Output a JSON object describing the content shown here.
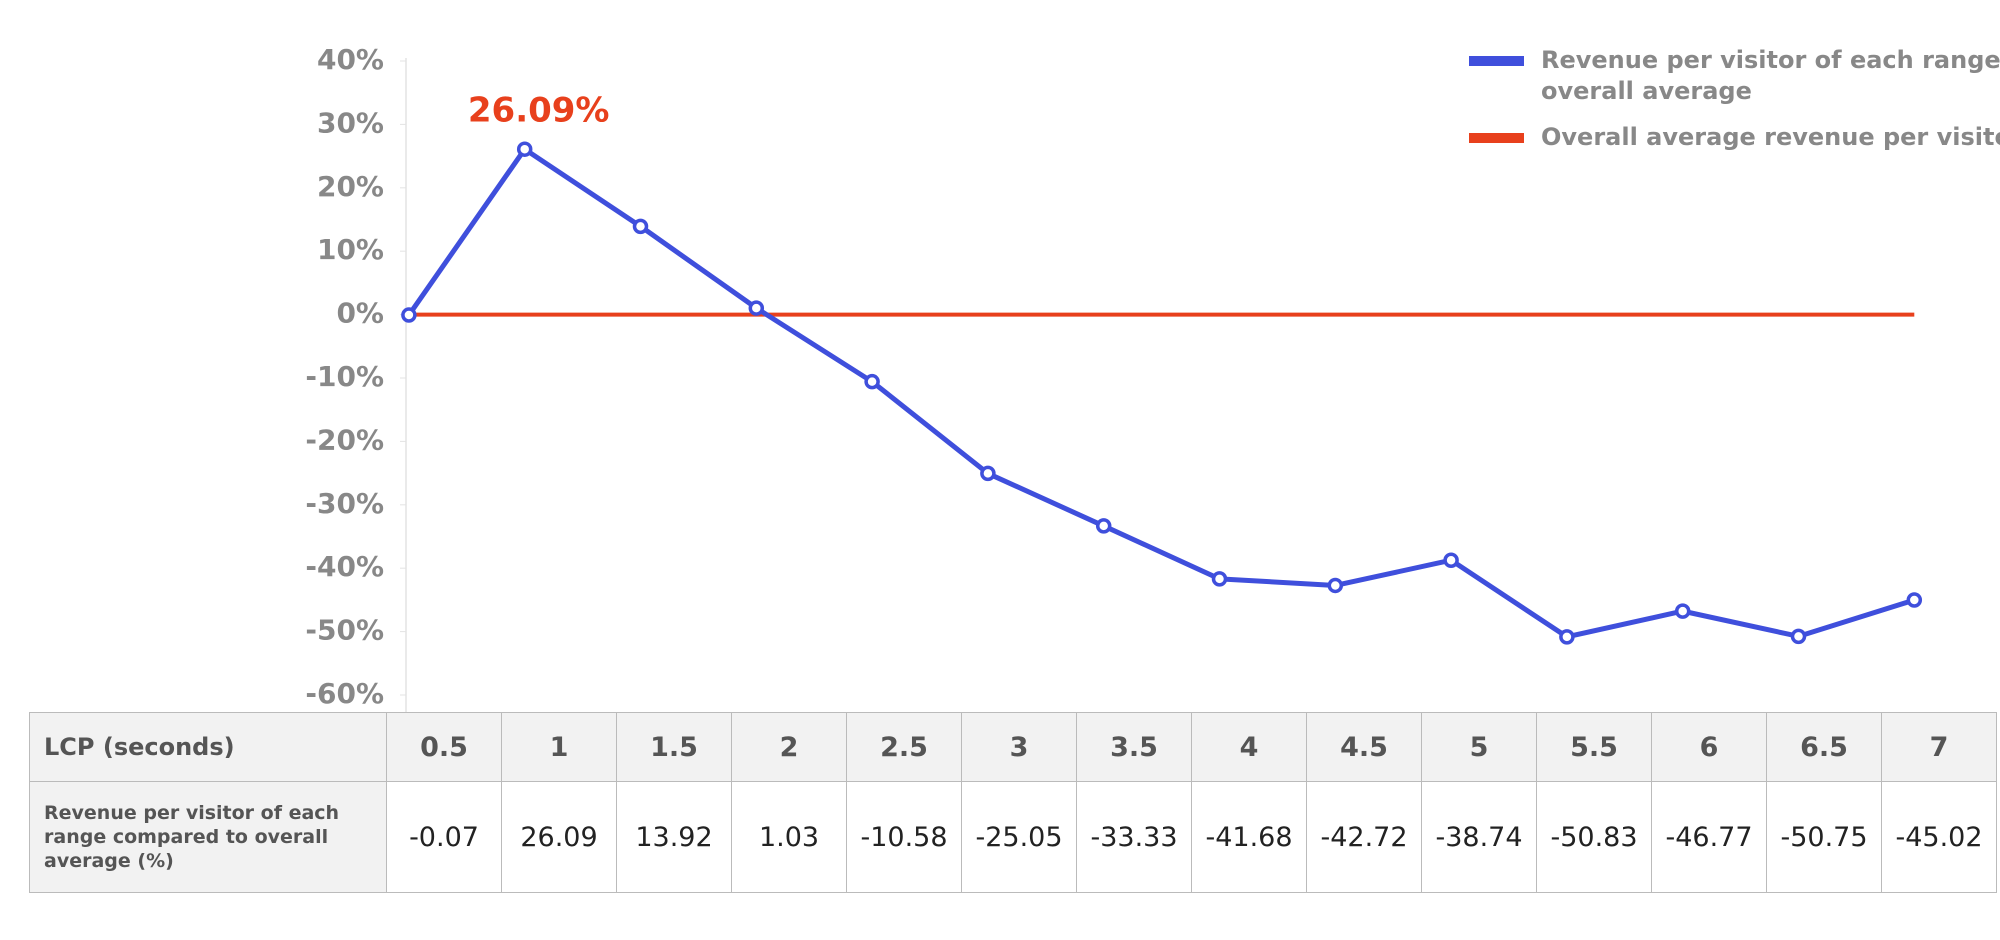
{
  "chart_data": {
    "type": "line",
    "categories": [
      "0.5",
      "1",
      "1.5",
      "2",
      "2.5",
      "3",
      "3.5",
      "4",
      "4.5",
      "5",
      "5.5",
      "6",
      "6.5",
      "7"
    ],
    "x_label": "LCP (seconds)",
    "table_row_label": "Revenue per visitor of each range compared to overall average (%)",
    "series": [
      {
        "name": "Revenue per visitor of each range compared to overall average",
        "color": "#3f4fdc",
        "values": [
          -0.07,
          26.09,
          13.92,
          1.03,
          -10.58,
          -25.05,
          -33.33,
          -41.68,
          -42.72,
          -38.74,
          -50.83,
          -46.77,
          -50.75,
          -45.02
        ]
      }
    ],
    "reference_line": {
      "name": "Overall average revenue per visitor",
      "color": "#e8401c",
      "value": 0
    },
    "annotations": [
      {
        "text": "26.09%",
        "index": 1,
        "color": "#e8401c"
      }
    ],
    "ylim": [
      -60,
      40
    ],
    "yticks": [
      {
        "value": 40,
        "label": "40%"
      },
      {
        "value": 30,
        "label": "30%"
      },
      {
        "value": 20,
        "label": "20%"
      },
      {
        "value": 10,
        "label": "10%"
      },
      {
        "value": 0,
        "label": "0%"
      },
      {
        "value": -10,
        "label": "-10%"
      },
      {
        "value": -20,
        "label": "-20%"
      },
      {
        "value": -30,
        "label": "-30%"
      },
      {
        "value": -40,
        "label": "-40%"
      },
      {
        "value": -50,
        "label": "-50%"
      },
      {
        "value": -60,
        "label": "-60%"
      }
    ],
    "legend": "top-right",
    "grid": false
  }
}
